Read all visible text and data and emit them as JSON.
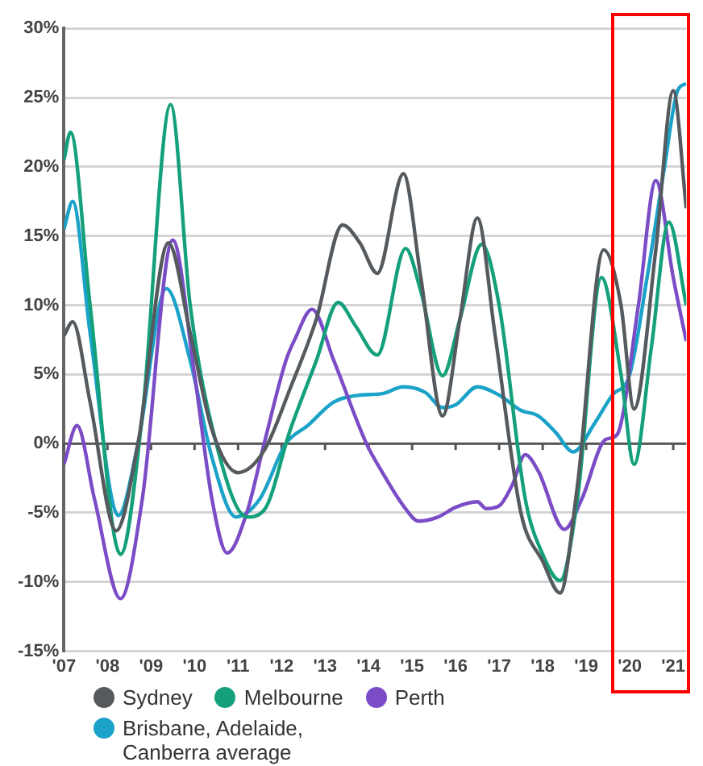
{
  "chart_data": {
    "type": "line",
    "xlim": [
      2007,
      2021.3
    ],
    "xticks": [
      {
        "value": 2007,
        "label": "'07"
      },
      {
        "value": 2008,
        "label": "'08"
      },
      {
        "value": 2009,
        "label": "'09"
      },
      {
        "value": 2010,
        "label": "'10"
      },
      {
        "value": 2011,
        "label": "'11"
      },
      {
        "value": 2012,
        "label": "'12"
      },
      {
        "value": 2013,
        "label": "'13"
      },
      {
        "value": 2014,
        "label": "'14"
      },
      {
        "value": 2015,
        "label": "'15"
      },
      {
        "value": 2016,
        "label": "'16"
      },
      {
        "value": 2017,
        "label": "'17"
      },
      {
        "value": 2018,
        "label": "'18"
      },
      {
        "value": 2019,
        "label": "'19"
      },
      {
        "value": 2020,
        "label": "'20"
      },
      {
        "value": 2021,
        "label": "'21"
      }
    ],
    "ylim": [
      -15,
      30
    ],
    "yticks": [
      {
        "value": -15,
        "label": "-15%"
      },
      {
        "value": -10,
        "label": "-10%"
      },
      {
        "value": -5,
        "label": "-5%"
      },
      {
        "value": 0,
        "label": "0%"
      },
      {
        "value": 5,
        "label": "5%"
      },
      {
        "value": 10,
        "label": "10%"
      },
      {
        "value": 15,
        "label": "15%"
      },
      {
        "value": 20,
        "label": "20%"
      },
      {
        "value": 25,
        "label": "25%"
      },
      {
        "value": 30,
        "label": "30%"
      }
    ],
    "grid": "y",
    "legend": "bottom",
    "marker": "none",
    "line_style": "solid",
    "series": [
      {
        "name": "Sydney",
        "color": "#555a5e",
        "x": [
          2007,
          2007.2,
          2007.6,
          2008.2,
          2008.7,
          2009.4,
          2009.9,
          2010.4,
          2011.0,
          2011.6,
          2012.2,
          2012.8,
          2013.4,
          2013.8,
          2014.2,
          2014.8,
          2015.2,
          2015.7,
          2016.1,
          2016.5,
          2016.9,
          2017.5,
          2018.0,
          2018.4,
          2018.8,
          2019.4,
          2019.8,
          2020.1,
          2020.6,
          2021.0,
          2021.3
        ],
        "values": [
          7.8,
          8.8,
          3,
          -6.3,
          0,
          14.5,
          8,
          1,
          -2.1,
          -0.5,
          4,
          9,
          15.8,
          14.5,
          12.3,
          19.5,
          12,
          2,
          9,
          16.3,
          8,
          -5,
          -8.5,
          -10.8,
          -3,
          14,
          10,
          2.5,
          14,
          25.5,
          17
        ]
      },
      {
        "name": "Melbourne",
        "color": "#13a07a",
        "x": [
          2007,
          2007.15,
          2007.6,
          2008.3,
          2008.8,
          2009.45,
          2009.9,
          2010.5,
          2011.2,
          2011.6,
          2012.2,
          2012.8,
          2013.3,
          2013.7,
          2014.2,
          2014.85,
          2015.2,
          2015.7,
          2016.1,
          2016.6,
          2017.0,
          2017.6,
          2018.0,
          2018.4,
          2018.8,
          2019.35,
          2019.8,
          2020.1,
          2020.5,
          2020.9,
          2021.3
        ],
        "values": [
          20.5,
          22.5,
          10,
          -8,
          2,
          24.5,
          10,
          0,
          -5.3,
          -4.8,
          1,
          6,
          10.2,
          8.5,
          6.4,
          14.1,
          11,
          4.9,
          9,
          14.4,
          10,
          -4,
          -8,
          -9.9,
          -4,
          12,
          5,
          -1.5,
          7,
          16,
          10
        ]
      },
      {
        "name": "Perth",
        "color": "#7a4cc6",
        "x": [
          2007,
          2007.3,
          2007.7,
          2008.3,
          2008.8,
          2009.5,
          2010.0,
          2010.4,
          2010.75,
          2011.2,
          2011.6,
          2012.1,
          2012.3,
          2012.7,
          2013.2,
          2013.95,
          2014.3,
          2014.8,
          2015.15,
          2015.6,
          2016.0,
          2016.5,
          2016.7,
          2017.0,
          2017.3,
          2017.6,
          2017.9,
          2018.5,
          2018.9,
          2019.45,
          2019.7,
          2020.2,
          2020.6,
          2021.0,
          2021.3
        ],
        "values": [
          -1.5,
          1.3,
          -4,
          -11.2,
          -4,
          14.7,
          5,
          -4,
          -7.9,
          -5,
          0,
          6,
          7.5,
          9.7,
          6,
          0,
          -2,
          -4.5,
          -5.6,
          -5.3,
          -4.6,
          -4.2,
          -4.7,
          -4.5,
          -3,
          -0.8,
          -2,
          -6.2,
          -4,
          0.3,
          0.6,
          10,
          19,
          12,
          7.4
        ]
      },
      {
        "name": "Brisbane, Adelaide, Canberra average",
        "color": "#1aa2c8",
        "x": [
          2007,
          2007.2,
          2007.6,
          2008.25,
          2008.7,
          2009.35,
          2009.9,
          2010.4,
          2010.95,
          2011.5,
          2012.1,
          2012.6,
          2013.2,
          2013.8,
          2014.3,
          2014.8,
          2015.3,
          2015.7,
          2016.0,
          2016.5,
          2017.0,
          2017.5,
          2017.9,
          2018.3,
          2018.7,
          2019.2,
          2019.6,
          2020.0,
          2020.4,
          2020.8,
          2021.1,
          2021.3
        ],
        "values": [
          15.5,
          17.5,
          8,
          -5.2,
          0,
          11.2,
          6,
          -1,
          -5.3,
          -4,
          0,
          1.3,
          3,
          3.5,
          3.6,
          4.1,
          3.7,
          2.6,
          2.8,
          4.1,
          3.5,
          2.4,
          2,
          0.8,
          -0.6,
          1.5,
          3.5,
          5,
          12,
          20,
          25.5,
          26
        ]
      }
    ]
  }
}
